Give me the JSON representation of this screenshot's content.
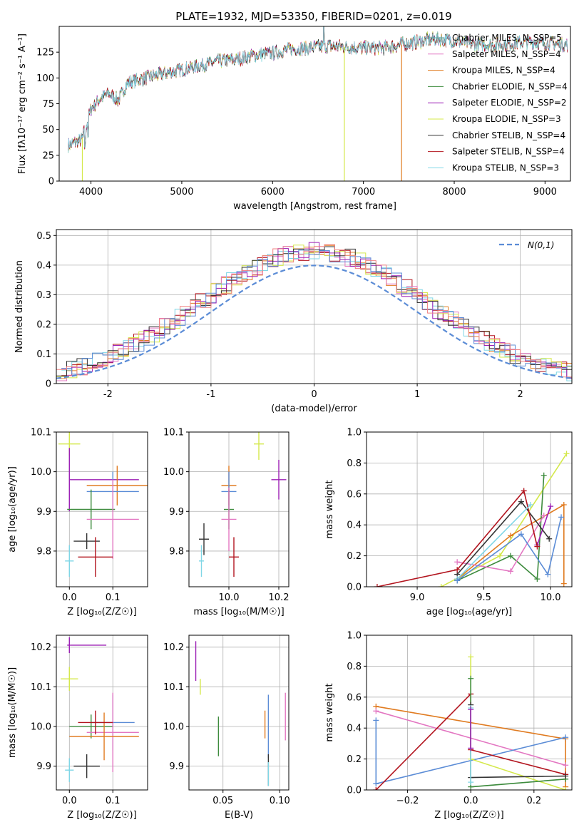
{
  "figure": {
    "title": "PLATE=1932, MJD=53350, FIBERID=0201, z=0.019"
  },
  "chart_data": [
    {
      "id": "spectrum",
      "type": "line",
      "xlabel": "wavelength [Angstrom, rest frame]",
      "ylabel": "Flux [fλ10⁻¹⁷ erg cm⁻² s⁻¹ A⁻¹]",
      "xlim": [
        3650,
        9280
      ],
      "ylim": [
        0,
        150
      ],
      "xticks": [
        4000,
        5000,
        6000,
        7000,
        8000,
        9000
      ],
      "yticks": [
        0,
        25,
        50,
        75,
        100,
        125
      ],
      "legend_position": "right",
      "continuum": [
        [
          3750,
          35
        ],
        [
          3900,
          40
        ],
        [
          4000,
          70
        ],
        [
          4100,
          80
        ],
        [
          4200,
          85
        ],
        [
          4300,
          78
        ],
        [
          4400,
          95
        ],
        [
          4600,
          100
        ],
        [
          4800,
          104
        ],
        [
          5000,
          108
        ],
        [
          5200,
          112
        ],
        [
          5400,
          116
        ],
        [
          5600,
          118
        ],
        [
          5800,
          122
        ],
        [
          6000,
          124
        ],
        [
          6200,
          128
        ],
        [
          6400,
          129
        ],
        [
          6600,
          131
        ],
        [
          6800,
          130
        ],
        [
          7000,
          129
        ],
        [
          7200,
          129
        ],
        [
          7400,
          132
        ],
        [
          7600,
          135
        ],
        [
          7800,
          138
        ],
        [
          8000,
          136
        ],
        [
          8200,
          133
        ],
        [
          8400,
          132
        ],
        [
          8600,
          133
        ],
        [
          8800,
          135
        ],
        [
          9000,
          134
        ],
        [
          9250,
          132
        ]
      ],
      "series": [
        {
          "name": "Chabrier MILES, N_SSP=5",
          "color": "#5aa9a0"
        },
        {
          "name": "Salpeter MILES, N_SSP=4",
          "color": "#e377c2"
        },
        {
          "name": "Kroupa MILES, N_SSP=4",
          "color": "#e07b20"
        },
        {
          "name": "Chabrier ELODIE, N_SSP=4",
          "color": "#3d8b3d"
        },
        {
          "name": "Salpeter ELODIE, N_SSP=2",
          "color": "#9c1fb5"
        },
        {
          "name": "Kroupa ELODIE, N_SSP=3",
          "color": "#d4e84a"
        },
        {
          "name": "Chabrier STELIB, N_SSP=4",
          "color": "#333333"
        },
        {
          "name": "Salpeter STELIB, N_SSP=4",
          "color": "#b2141e"
        },
        {
          "name": "Kroupa STELIB, N_SSP=3",
          "color": "#7fd6e6"
        }
      ]
    },
    {
      "id": "residuals",
      "type": "step",
      "xlabel": "(data-model)/error",
      "ylabel": "Normed distribution",
      "xlim": [
        -2.5,
        2.5
      ],
      "ylim": [
        0,
        0.52
      ],
      "xticks": [
        -2,
        -1,
        0,
        1,
        2
      ],
      "yticks": [
        0.0,
        0.1,
        0.2,
        0.3,
        0.4,
        0.5
      ],
      "legend": "N(0,1)",
      "normal_color": "#5b8cd6",
      "bin_width": 0.1,
      "hist_colors": [
        "#e07b20",
        "#b2141e",
        "#e377c2",
        "#7fd6e6",
        "#d4e84a",
        "#9c1fb5",
        "#333333",
        "#5b8cd6",
        "#f08080"
      ]
    },
    {
      "id": "age_vs_Z",
      "type": "scatter",
      "xlabel": "Z [log₁₀(Z/Z☉)]",
      "ylabel": "age  [log₁₀(age/yr)]",
      "xlim": [
        -0.03,
        0.18
      ],
      "ylim": [
        9.71,
        10.1
      ],
      "xticks": [
        "0.0",
        "0.1"
      ],
      "yticks": [
        "9.8",
        "9.9",
        "10.0",
        "10.1"
      ],
      "points": [
        {
          "x": 0.0,
          "y": 10.07,
          "xe": 0.025,
          "ye": 0.03,
          "c": "#d4e84a"
        },
        {
          "x": 0.0,
          "y": 9.98,
          "xe": 0.0,
          "ye": 0.08,
          "c": "#9c1fb5"
        },
        {
          "x": 0.08,
          "y": 9.98,
          "xe": 0.08,
          "ye": 0.0,
          "c": "#9c1fb5"
        },
        {
          "x": 0.11,
          "y": 9.965,
          "xe": 0.07,
          "ye": 0.05,
          "c": "#e07b20"
        },
        {
          "x": 0.1,
          "y": 9.95,
          "xe": 0.06,
          "ye": 0.05,
          "c": "#5b8cd6"
        },
        {
          "x": 0.05,
          "y": 9.905,
          "xe": 0.055,
          "ye": 0.05,
          "c": "#3d8b3d"
        },
        {
          "x": 0.1,
          "y": 9.88,
          "xe": 0.06,
          "ye": 0.1,
          "c": "#e377c2"
        },
        {
          "x": 0.04,
          "y": 9.825,
          "xe": 0.03,
          "ye": 0.02,
          "c": "#333333"
        },
        {
          "x": 0.06,
          "y": 9.785,
          "xe": 0.04,
          "ye": 0.05,
          "c": "#b2141e"
        },
        {
          "x": 0.0,
          "y": 9.775,
          "xe": 0.01,
          "ye": 0.04,
          "c": "#7fd6e6"
        }
      ]
    },
    {
      "id": "age_vs_mass",
      "type": "scatter",
      "xlabel": "mass [log₁₀(M/M☉)]",
      "ylabel": "",
      "xlim": [
        9.84,
        10.24
      ],
      "ylim": [
        9.71,
        10.1
      ],
      "xticks": [
        "10.0",
        "10.2"
      ],
      "yticks": [
        "9.8",
        "9.9",
        "10.0",
        "10.1"
      ],
      "points": [
        {
          "x": 10.12,
          "y": 10.07,
          "xe": 0.02,
          "ye": 0.04,
          "c": "#d4e84a"
        },
        {
          "x": 10.2,
          "y": 9.98,
          "xe": 0.03,
          "ye": 0.05,
          "c": "#9c1fb5"
        },
        {
          "x": 10.0,
          "y": 9.965,
          "xe": 0.03,
          "ye": 0.05,
          "c": "#e07b20"
        },
        {
          "x": 10.0,
          "y": 9.95,
          "xe": 0.03,
          "ye": 0.05,
          "c": "#5b8cd6"
        },
        {
          "x": 10.0,
          "y": 9.905,
          "xe": 0.02,
          "ye": 0.05,
          "c": "#3d8b3d"
        },
        {
          "x": 10.0,
          "y": 9.88,
          "xe": 0.03,
          "ye": 0.08,
          "c": "#e377c2"
        },
        {
          "x": 9.9,
          "y": 9.83,
          "xe": 0.02,
          "ye": 0.04,
          "c": "#333333"
        },
        {
          "x": 10.02,
          "y": 9.785,
          "xe": 0.02,
          "ye": 0.05,
          "c": "#b2141e"
        },
        {
          "x": 9.89,
          "y": 9.775,
          "xe": 0.01,
          "ye": 0.04,
          "c": "#7fd6e6"
        }
      ]
    },
    {
      "id": "weight_vs_age",
      "type": "line",
      "xlabel": "age  [log₁₀(age/yr)]",
      "ylabel": "mass weight",
      "xlim": [
        8.62,
        10.16
      ],
      "ylim": [
        0,
        1
      ],
      "xticks": [
        "9.0",
        "9.5",
        "10.0"
      ],
      "yticks": [
        "0.0",
        "0.2",
        "0.4",
        "0.6",
        "0.8",
        "1.0"
      ],
      "series": [
        {
          "c": "#d4e84a",
          "pts": [
            [
              9.18,
              0.0
            ],
            [
              9.62,
              0.2
            ],
            [
              10.12,
              0.86
            ]
          ]
        },
        {
          "c": "#e07b20",
          "pts": [
            [
              9.3,
              0.05
            ],
            [
              9.7,
              0.33
            ],
            [
              10.1,
              0.53
            ],
            [
              10.1,
              0.02
            ]
          ]
        },
        {
          "c": "#3d8b3d",
          "pts": [
            [
              9.3,
              0.04
            ],
            [
              9.7,
              0.2
            ],
            [
              9.9,
              0.05
            ],
            [
              9.95,
              0.72
            ]
          ]
        },
        {
          "c": "#e377c2",
          "pts": [
            [
              9.3,
              0.16
            ],
            [
              9.7,
              0.1
            ],
            [
              9.95,
              0.46
            ]
          ]
        },
        {
          "c": "#9c1fb5",
          "pts": [
            [
              9.9,
              0.27
            ],
            [
              10.0,
              0.52
            ]
          ]
        },
        {
          "c": "#333333",
          "pts": [
            [
              9.3,
              0.08
            ],
            [
              9.78,
              0.55
            ],
            [
              9.99,
              0.31
            ]
          ]
        },
        {
          "c": "#b2141e",
          "pts": [
            [
              8.7,
              0.0
            ],
            [
              9.3,
              0.11
            ],
            [
              9.8,
              0.62
            ],
            [
              9.9,
              0.26
            ]
          ]
        },
        {
          "c": "#7fd6e6",
          "pts": [
            [
              9.3,
              0.05
            ],
            [
              9.85,
              0.53
            ]
          ]
        },
        {
          "c": "#5b8cd6",
          "pts": [
            [
              9.3,
              0.04
            ],
            [
              9.78,
              0.34
            ],
            [
              9.98,
              0.08
            ],
            [
              10.08,
              0.45
            ]
          ]
        }
      ]
    },
    {
      "id": "mass_vs_Z",
      "type": "scatter",
      "xlabel": "Z [log₁₀(Z/Z☉)]",
      "ylabel": "mass [log₁₀(M/M☉)]",
      "xlim": [
        -0.03,
        0.18
      ],
      "ylim": [
        9.84,
        10.23
      ],
      "xticks": [
        "0.0",
        "0.1"
      ],
      "yticks": [
        "9.9",
        "10.0",
        "10.1",
        "10.2"
      ],
      "points": [
        {
          "x": 0.0,
          "y": 10.205,
          "xe": 0.0,
          "ye": 0.02,
          "c": "#9c1fb5"
        },
        {
          "x": 0.04,
          "y": 10.205,
          "xe": 0.045,
          "ye": 0.0,
          "c": "#9c1fb5"
        },
        {
          "x": 0.0,
          "y": 10.12,
          "xe": 0.02,
          "ye": 0.03,
          "c": "#d4e84a"
        },
        {
          "x": 0.1,
          "y": 10.01,
          "xe": 0.05,
          "ye": 0.07,
          "c": "#5b8cd6"
        },
        {
          "x": 0.05,
          "y": 10.0,
          "xe": 0.05,
          "ye": 0.03,
          "c": "#3d8b3d"
        },
        {
          "x": 0.1,
          "y": 9.985,
          "xe": 0.06,
          "ye": 0.1,
          "c": "#e377c2"
        },
        {
          "x": 0.08,
          "y": 9.975,
          "xe": 0.08,
          "ye": 0.06,
          "c": "#e07b20"
        },
        {
          "x": 0.06,
          "y": 10.01,
          "xe": 0.04,
          "ye": 0.03,
          "c": "#b2141e"
        },
        {
          "x": 0.04,
          "y": 9.9,
          "xe": 0.03,
          "ye": 0.03,
          "c": "#333333"
        },
        {
          "x": 0.0,
          "y": 9.89,
          "xe": 0.01,
          "ye": 0.03,
          "c": "#7fd6e6"
        }
      ]
    },
    {
      "id": "mass_vs_ebv",
      "type": "scatter",
      "xlabel": "E(B-V)",
      "ylabel": "",
      "xlim": [
        0.02,
        0.108
      ],
      "ylim": [
        9.84,
        10.23
      ],
      "xticks": [
        "0.05",
        "0.10"
      ],
      "yticks": [
        "9.9",
        "10.0",
        "10.1",
        "10.2"
      ],
      "points": [
        {
          "x": 0.026,
          "y": 10.165,
          "xe": 0,
          "ye": 0.05,
          "c": "#9c1fb5"
        },
        {
          "x": 0.03,
          "y": 10.1,
          "xe": 0,
          "ye": 0.02,
          "c": "#d4e84a"
        },
        {
          "x": 0.046,
          "y": 9.975,
          "xe": 0,
          "ye": 0.05,
          "c": "#3d8b3d"
        },
        {
          "x": 0.087,
          "y": 10.005,
          "xe": 0,
          "ye": 0.035,
          "c": "#e07b20"
        },
        {
          "x": 0.09,
          "y": 10.0,
          "xe": 0,
          "ye": 0.08,
          "c": "#5b8cd6"
        },
        {
          "x": 0.09,
          "y": 9.89,
          "xe": 0,
          "ye": 0.04,
          "c": "#333333"
        },
        {
          "x": 0.09,
          "y": 9.88,
          "xe": 0,
          "ye": 0.03,
          "c": "#7fd6e6"
        },
        {
          "x": 0.105,
          "y": 10.025,
          "xe": 0,
          "ye": 0.06,
          "c": "#e377c2"
        }
      ]
    },
    {
      "id": "weight_vs_Z",
      "type": "line",
      "xlabel": "Z [log₁₀(Z/Z☉)]",
      "ylabel": "mass weight",
      "xlim": [
        -0.33,
        0.32
      ],
      "ylim": [
        0,
        1
      ],
      "xticks": [
        "−0.2",
        "0.0",
        "0.2"
      ],
      "yticks": [
        "0.0",
        "0.2",
        "0.4",
        "0.6",
        "0.8",
        "1.0"
      ],
      "series": [
        {
          "c": "#e07b20",
          "pts": [
            [
              -0.3,
              0.54
            ],
            [
              0.3,
              0.33
            ],
            [
              0.3,
              0.02
            ]
          ]
        },
        {
          "c": "#e377c2",
          "pts": [
            [
              -0.3,
              0.51
            ],
            [
              0.3,
              0.16
            ]
          ]
        },
        {
          "c": "#5b8cd6",
          "pts": [
            [
              -0.3,
              0.45
            ],
            [
              -0.3,
              0.04
            ],
            [
              0.3,
              0.34
            ]
          ]
        },
        {
          "c": "#b2141e",
          "pts": [
            [
              -0.3,
              0.0
            ],
            [
              0.0,
              0.62
            ],
            [
              0.0,
              0.26
            ],
            [
              0.3,
              0.1
            ]
          ]
        },
        {
          "c": "#d4e84a",
          "pts": [
            [
              0.0,
              0.86
            ],
            [
              0.0,
              0.2
            ],
            [
              0.3,
              0.0
            ]
          ]
        },
        {
          "c": "#3d8b3d",
          "pts": [
            [
              0.0,
              0.72
            ],
            [
              0.0,
              0.02
            ],
            [
              0.3,
              0.07
            ]
          ]
        },
        {
          "c": "#333333",
          "pts": [
            [
              0.0,
              0.55
            ],
            [
              0.0,
              0.08
            ],
            [
              0.3,
              0.09
            ]
          ]
        },
        {
          "c": "#7fd6e6",
          "pts": [
            [
              0.0,
              0.53
            ],
            [
              0.0,
              0.05
            ]
          ]
        },
        {
          "c": "#9c1fb5",
          "pts": [
            [
              0.0,
              0.52
            ],
            [
              0.0,
              0.27
            ]
          ]
        }
      ]
    }
  ]
}
